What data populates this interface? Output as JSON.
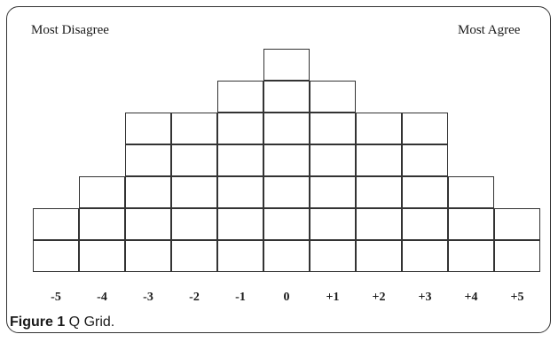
{
  "labels": {
    "left": "Most Disagree",
    "right": "Most Agree"
  },
  "columns": [
    {
      "label": "-5",
      "cells": 2
    },
    {
      "label": "-4",
      "cells": 3
    },
    {
      "label": "-3",
      "cells": 5
    },
    {
      "label": "-2",
      "cells": 5
    },
    {
      "label": "-1",
      "cells": 6
    },
    {
      "label": "0",
      "cells": 7
    },
    {
      "label": "+1",
      "cells": 6
    },
    {
      "label": "+2",
      "cells": 5
    },
    {
      "label": "+3",
      "cells": 5
    },
    {
      "label": "+4",
      "cells": 3
    },
    {
      "label": "+5",
      "cells": 2
    }
  ],
  "caption": {
    "figure_label": "Figure 1",
    "text": " Q Grid."
  }
}
